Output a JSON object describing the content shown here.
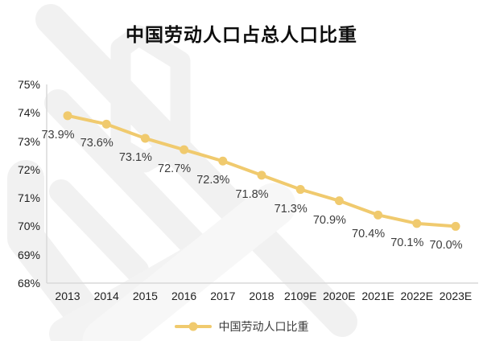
{
  "title": "中国劳动人口占总人口比重",
  "legend": {
    "label": "中国劳动人口比重"
  },
  "colors": {
    "line": "#F0CA6E",
    "marker": "#F0CA6E",
    "axis": "#D9D9D9",
    "tick_text": "#1f1f1f",
    "data_label_text": "#3d3d3d",
    "title_text": "#0d0d0d",
    "watermark": "#F1F1F1"
  },
  "chart_data": {
    "type": "line",
    "title": "中国劳动人口占总人口比重",
    "categories": [
      "2013",
      "2014",
      "2015",
      "2016",
      "2017",
      "2018",
      "2109E",
      "2020E",
      "2021E",
      "2022E",
      "2023E"
    ],
    "series": [
      {
        "name": "中国劳动人口比重",
        "values": [
          73.9,
          73.6,
          73.1,
          72.7,
          72.3,
          71.8,
          71.3,
          70.9,
          70.4,
          70.1,
          70.0
        ]
      }
    ],
    "data_labels": [
      "73.9%",
      "73.6%",
      "73.1%",
      "72.7%",
      "72.3%",
      "71.8%",
      "71.3%",
      "70.9%",
      "70.4%",
      "70.1%",
      "70.0%"
    ],
    "y_ticks": [
      "75%",
      "74%",
      "73%",
      "72%",
      "71%",
      "70%",
      "69%",
      "68%"
    ],
    "y_tick_values": [
      75,
      74,
      73,
      72,
      71,
      70,
      69,
      68
    ],
    "ylim": [
      68,
      75
    ],
    "xlabel": "",
    "ylabel": "",
    "grid": false,
    "legend_position": "bottom",
    "marker": "circle"
  }
}
